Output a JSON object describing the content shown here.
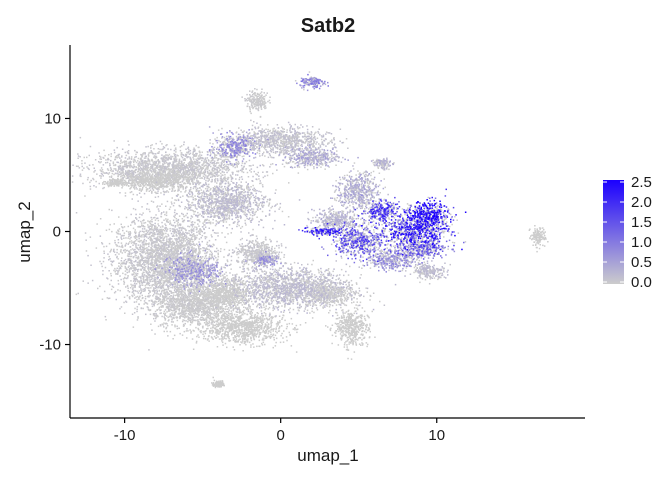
{
  "chart_data": {
    "type": "scatter",
    "title": "Satb2",
    "xlabel": "umap_1",
    "ylabel": "umap_2",
    "xlim": [
      -13.5,
      19.5
    ],
    "ylim": [
      -16.5,
      16.5
    ],
    "x_ticks": [
      -10,
      0,
      10
    ],
    "y_ticks": [
      -10,
      0,
      10
    ],
    "x_tick_labels": [
      "-10",
      "0",
      "10"
    ],
    "y_tick_labels": [
      "-10",
      "0",
      "10"
    ],
    "grid": false,
    "legend": {
      "position": "right",
      "type": "colorbar",
      "min": 0.0,
      "max": 2.5,
      "ticks": [
        2.5,
        2.0,
        1.5,
        1.0,
        0.5,
        0.0
      ],
      "tick_labels": [
        "2.5",
        "2.0",
        "1.5",
        "1.0",
        "0.5",
        "0.0"
      ],
      "low_color": "#cccccc",
      "high_color": "#1b00ff"
    },
    "clusters": [
      {
        "x": -7.5,
        "y": -2.5,
        "sx": 3.0,
        "sy": 3.6,
        "expression": 0.1
      },
      {
        "x": -5.5,
        "y": -6.5,
        "sx": 2.4,
        "sy": 1.8,
        "expression": 0.05
      },
      {
        "x": -7.0,
        "y": 5.5,
        "sx": 4.5,
        "sy": 1.6,
        "expression": 0.1
      },
      {
        "x": -3.5,
        "y": 2.5,
        "sx": 2.4,
        "sy": 1.6,
        "expression": 0.2
      },
      {
        "x": -3.0,
        "y": 7.5,
        "sx": 1.2,
        "sy": 1.0,
        "expression": 0.7
      },
      {
        "x": 0.0,
        "y": 8.0,
        "sx": 2.8,
        "sy": 1.1,
        "expression": 0.15
      },
      {
        "x": 2.0,
        "y": 6.5,
        "sx": 1.5,
        "sy": 0.8,
        "expression": 0.4
      },
      {
        "x": -1.5,
        "y": 11.5,
        "sx": 0.6,
        "sy": 0.8,
        "expression": 0.05
      },
      {
        "x": 2.0,
        "y": 13.2,
        "sx": 0.7,
        "sy": 0.5,
        "expression": 0.8
      },
      {
        "x": -8.0,
        "y": 4.5,
        "sx": 2.0,
        "sy": 0.8,
        "expression": 0.0
      },
      {
        "x": -10.5,
        "y": 4.3,
        "sx": 0.6,
        "sy": 0.3,
        "expression": 0.0
      },
      {
        "x": -3.5,
        "y": -5.5,
        "sx": 1.5,
        "sy": 1.2,
        "expression": 0.0
      },
      {
        "x": -5.5,
        "y": -3.5,
        "sx": 1.5,
        "sy": 1.2,
        "expression": 0.6
      },
      {
        "x": 0.5,
        "y": -5.0,
        "sx": 3.5,
        "sy": 1.6,
        "expression": 0.2
      },
      {
        "x": -2.5,
        "y": -8.5,
        "sx": 2.5,
        "sy": 1.3,
        "expression": 0.0
      },
      {
        "x": 4.5,
        "y": -8.5,
        "sx": 1.0,
        "sy": 1.5,
        "expression": 0.0
      },
      {
        "x": 3.0,
        "y": -5.5,
        "sx": 1.5,
        "sy": 1.0,
        "expression": 0.05
      },
      {
        "x": -1.5,
        "y": -2.0,
        "sx": 1.2,
        "sy": 1.2,
        "expression": 0.1
      },
      {
        "x": -1.0,
        "y": -2.5,
        "sx": 0.8,
        "sy": 0.5,
        "expression": 0.6
      },
      {
        "x": 5.0,
        "y": 3.5,
        "sx": 1.2,
        "sy": 1.5,
        "expression": 0.4
      },
      {
        "x": 3.5,
        "y": 1.0,
        "sx": 1.3,
        "sy": 0.8,
        "expression": 0.3
      },
      {
        "x": 2.8,
        "y": 0.0,
        "sx": 1.0,
        "sy": 0.35,
        "expression": 1.8
      },
      {
        "x": 5.0,
        "y": -0.8,
        "sx": 1.5,
        "sy": 1.2,
        "expression": 1.4
      },
      {
        "x": 8.5,
        "y": 0.2,
        "sx": 2.0,
        "sy": 1.5,
        "expression": 1.9
      },
      {
        "x": 9.5,
        "y": 1.5,
        "sx": 1.2,
        "sy": 1.1,
        "expression": 2.3
      },
      {
        "x": 9.0,
        "y": -1.5,
        "sx": 1.5,
        "sy": 0.8,
        "expression": 1.2
      },
      {
        "x": 6.5,
        "y": 1.8,
        "sx": 1.0,
        "sy": 0.8,
        "expression": 1.6
      },
      {
        "x": 6.5,
        "y": 6.0,
        "sx": 0.5,
        "sy": 0.4,
        "expression": 0.3
      },
      {
        "x": 7.0,
        "y": -2.5,
        "sx": 1.5,
        "sy": 0.8,
        "expression": 0.7
      },
      {
        "x": 16.5,
        "y": -0.5,
        "sx": 0.4,
        "sy": 0.7,
        "expression": 0.0
      },
      {
        "x": 9.5,
        "y": -3.5,
        "sx": 1.0,
        "sy": 0.6,
        "expression": 0.2
      },
      {
        "x": -4.0,
        "y": -13.5,
        "sx": 0.3,
        "sy": 0.3,
        "expression": 0.0
      }
    ]
  }
}
